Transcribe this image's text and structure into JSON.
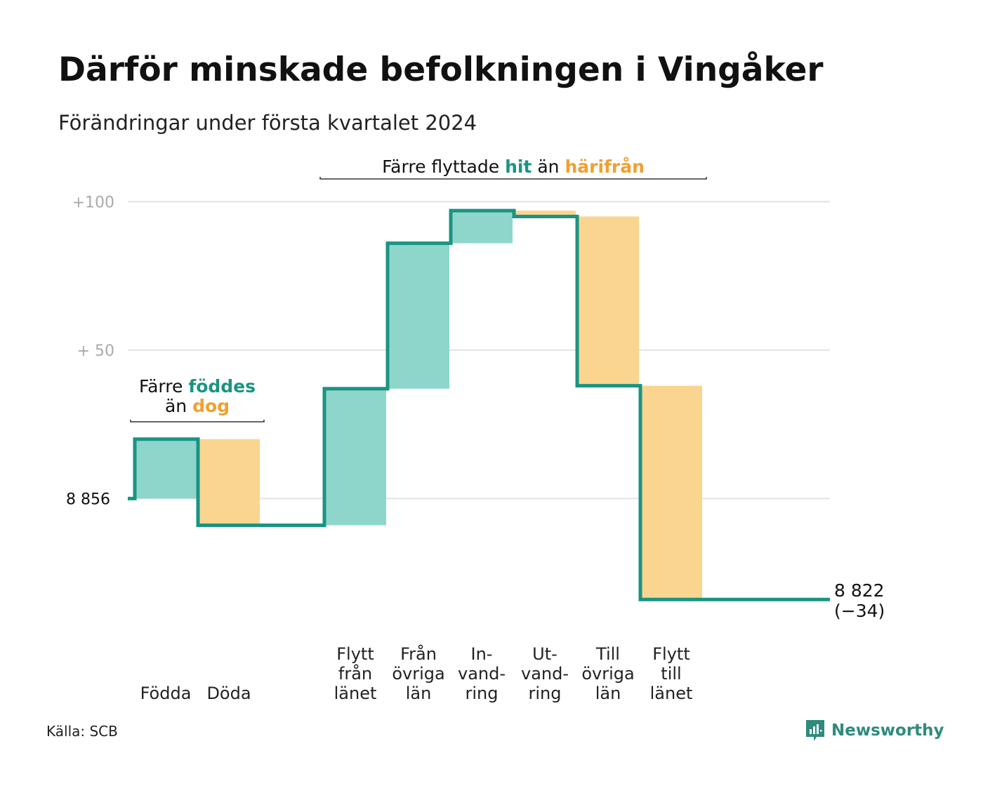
{
  "title": "Därför minskade befolkningen i Vingåker",
  "subtitle": "Förändringar under första kvartalet 2024",
  "source": "Källa: SCB",
  "brand": {
    "name": "Newsworthy",
    "icon": "newsworthy-logo-icon",
    "color": "#2e8b7e"
  },
  "chart_data": {
    "type": "waterfall",
    "start_value": 8856,
    "end_label": "8 822",
    "end_change_label": "(−34)",
    "y_tick_labels": [
      {
        "value": 8856,
        "label": "8  856"
      },
      {
        "value": 8906,
        "label": "+  50"
      },
      {
        "value": 8956,
        "label": "+100"
      }
    ],
    "ylim": [
      8810,
      8962
    ],
    "grid": true,
    "colors": {
      "line": "#1a9482",
      "increase": "#8ed6cc",
      "decrease": "#fad58f",
      "hit": "#1a9482",
      "harifran": "#f0a030"
    },
    "categories": [
      {
        "label": [
          "Födda"
        ],
        "change": 20,
        "kind": "increase"
      },
      {
        "label": [
          "Döda"
        ],
        "change": -29,
        "kind": "decrease"
      },
      {
        "label": [
          ""
        ],
        "change": 0,
        "kind": "none"
      },
      {
        "label": [
          "Flytt",
          "från",
          "länet"
        ],
        "change": 46,
        "kind": "increase"
      },
      {
        "label": [
          "Från",
          "övriga",
          "län"
        ],
        "change": 49,
        "kind": "increase"
      },
      {
        "label": [
          "In-",
          "vand-",
          "ring"
        ],
        "change": 11,
        "kind": "increase"
      },
      {
        "label": [
          "Ut-",
          "vand-",
          "ring"
        ],
        "change": -2,
        "kind": "decrease"
      },
      {
        "label": [
          "Till",
          "övriga",
          "län"
        ],
        "change": -57,
        "kind": "decrease"
      },
      {
        "label": [
          "Flytt",
          "till",
          "länet"
        ],
        "change": -72,
        "kind": "decrease"
      },
      {
        "label": [
          ""
        ],
        "change": 0,
        "kind": "none"
      }
    ],
    "annotations": [
      {
        "id": "births",
        "from_index": 0,
        "to_index": 1,
        "lines": [
          [
            {
              "text": "Färre ",
              "style": "plain"
            },
            {
              "text": "föddes",
              "style": "hit"
            }
          ],
          [
            {
              "text": "än ",
              "style": "plain"
            },
            {
              "text": "dog",
              "style": "harifran"
            }
          ]
        ]
      },
      {
        "id": "moves",
        "from_index": 3,
        "to_index": 8,
        "lines": [
          [
            {
              "text": "Färre flyttade ",
              "style": "plain"
            },
            {
              "text": "hit",
              "style": "hit"
            },
            {
              "text": "  än ",
              "style": "plain"
            },
            {
              "text": "härifrån",
              "style": "harifran"
            }
          ]
        ]
      }
    ]
  }
}
